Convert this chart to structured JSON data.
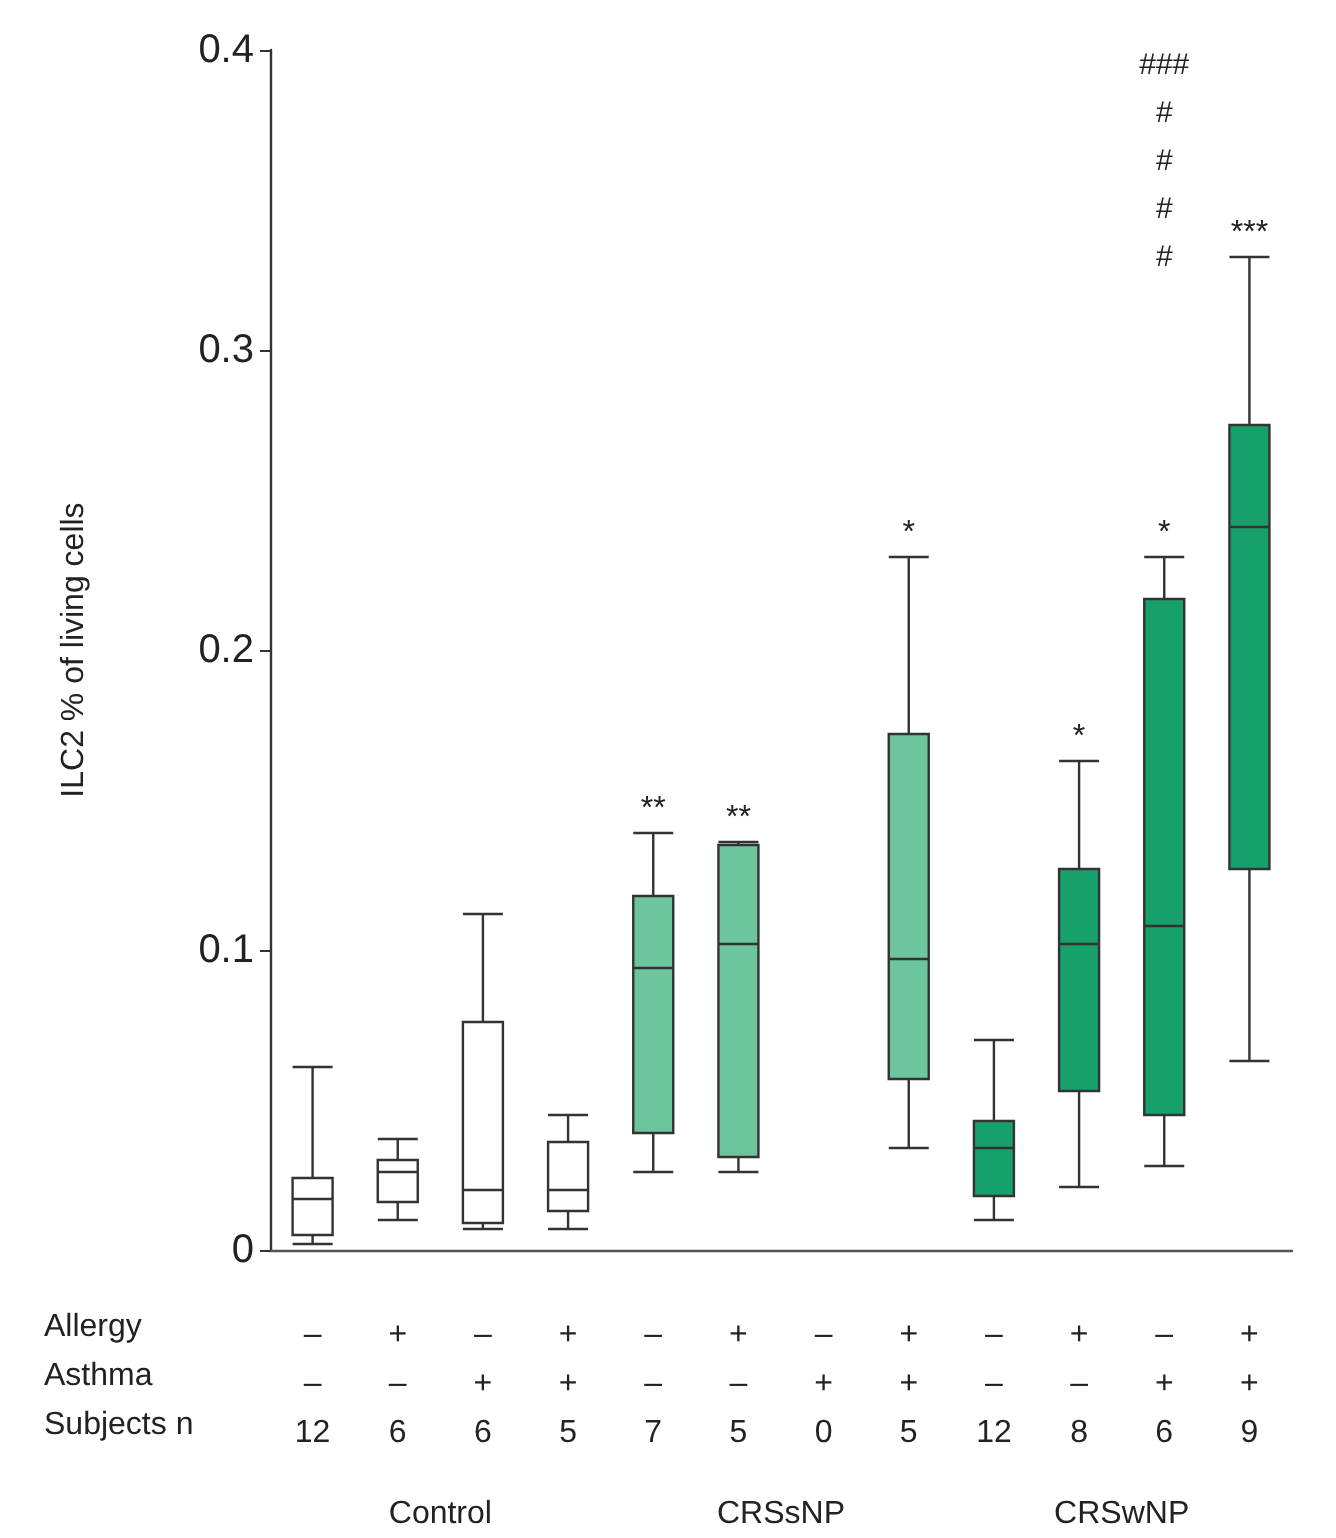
{
  "chart_data": {
    "type": "box",
    "ylabel": "ILC2 % of living cells",
    "categories": [
      "–\n–\n12",
      "+\n–\n6",
      "–\n+\n6",
      "+\n+\n5",
      "–\n–\n7",
      "+\n–\n5",
      "–\n+\n0",
      "+\n+\n5",
      "–\n–\n12",
      "+\n–\n8",
      "–\n+\n6",
      "+\n+\n9"
    ],
    "colors": [
      "#ffffff",
      "#ffffff",
      "#ffffff",
      "#ffffff",
      "#6cc59c",
      "#6cc59c",
      "#6cc59c",
      "#6cc59c",
      "#18a06c",
      "#18a06c",
      "#18a06c",
      "#18a06c"
    ],
    "boxes": [
      {
        "low": 0.002,
        "q1": 0.005,
        "median": 0.017,
        "q3": 0.024,
        "high": 0.061
      },
      {
        "low": 0.01,
        "q1": 0.016,
        "median": 0.026,
        "q3": 0.03,
        "high": 0.037
      },
      {
        "low": 0.007,
        "q1": 0.009,
        "median": 0.02,
        "q3": 0.076,
        "high": 0.112
      },
      {
        "low": 0.007,
        "q1": 0.013,
        "median": 0.02,
        "q3": 0.036,
        "high": 0.045
      },
      {
        "low": 0.026,
        "q1": 0.039,
        "median": 0.094,
        "q3": 0.118,
        "high": 0.139
      },
      {
        "low": 0.026,
        "q1": 0.031,
        "median": 0.102,
        "q3": 0.135,
        "high": 0.136
      },
      null,
      {
        "low": 0.034,
        "q1": 0.057,
        "median": 0.097,
        "q3": 0.172,
        "high": 0.231
      },
      {
        "low": 0.01,
        "q1": 0.018,
        "median": 0.034,
        "q3": 0.043,
        "high": 0.07
      },
      {
        "low": 0.021,
        "q1": 0.053,
        "median": 0.102,
        "q3": 0.127,
        "high": 0.163
      },
      {
        "low": 0.028,
        "q1": 0.045,
        "median": 0.108,
        "q3": 0.217,
        "high": 0.231
      },
      {
        "low": 0.063,
        "q1": 0.127,
        "median": 0.241,
        "q3": 0.275,
        "high": 0.331
      }
    ],
    "ylim": [
      0,
      0.4
    ],
    "yticks": [
      0,
      0.1,
      0.2,
      0.3,
      0.4
    ],
    "grid": false,
    "value_labels": [
      null,
      null,
      null,
      null,
      "**",
      "**",
      null,
      "*",
      null,
      "*",
      "*",
      "***"
    ],
    "annotations": [
      "Allergy\nAsthma\nSubjects n",
      "Control",
      "CRSsNP",
      "CRSwNP",
      "###",
      "#",
      "#",
      "#",
      "#"
    ]
  }
}
